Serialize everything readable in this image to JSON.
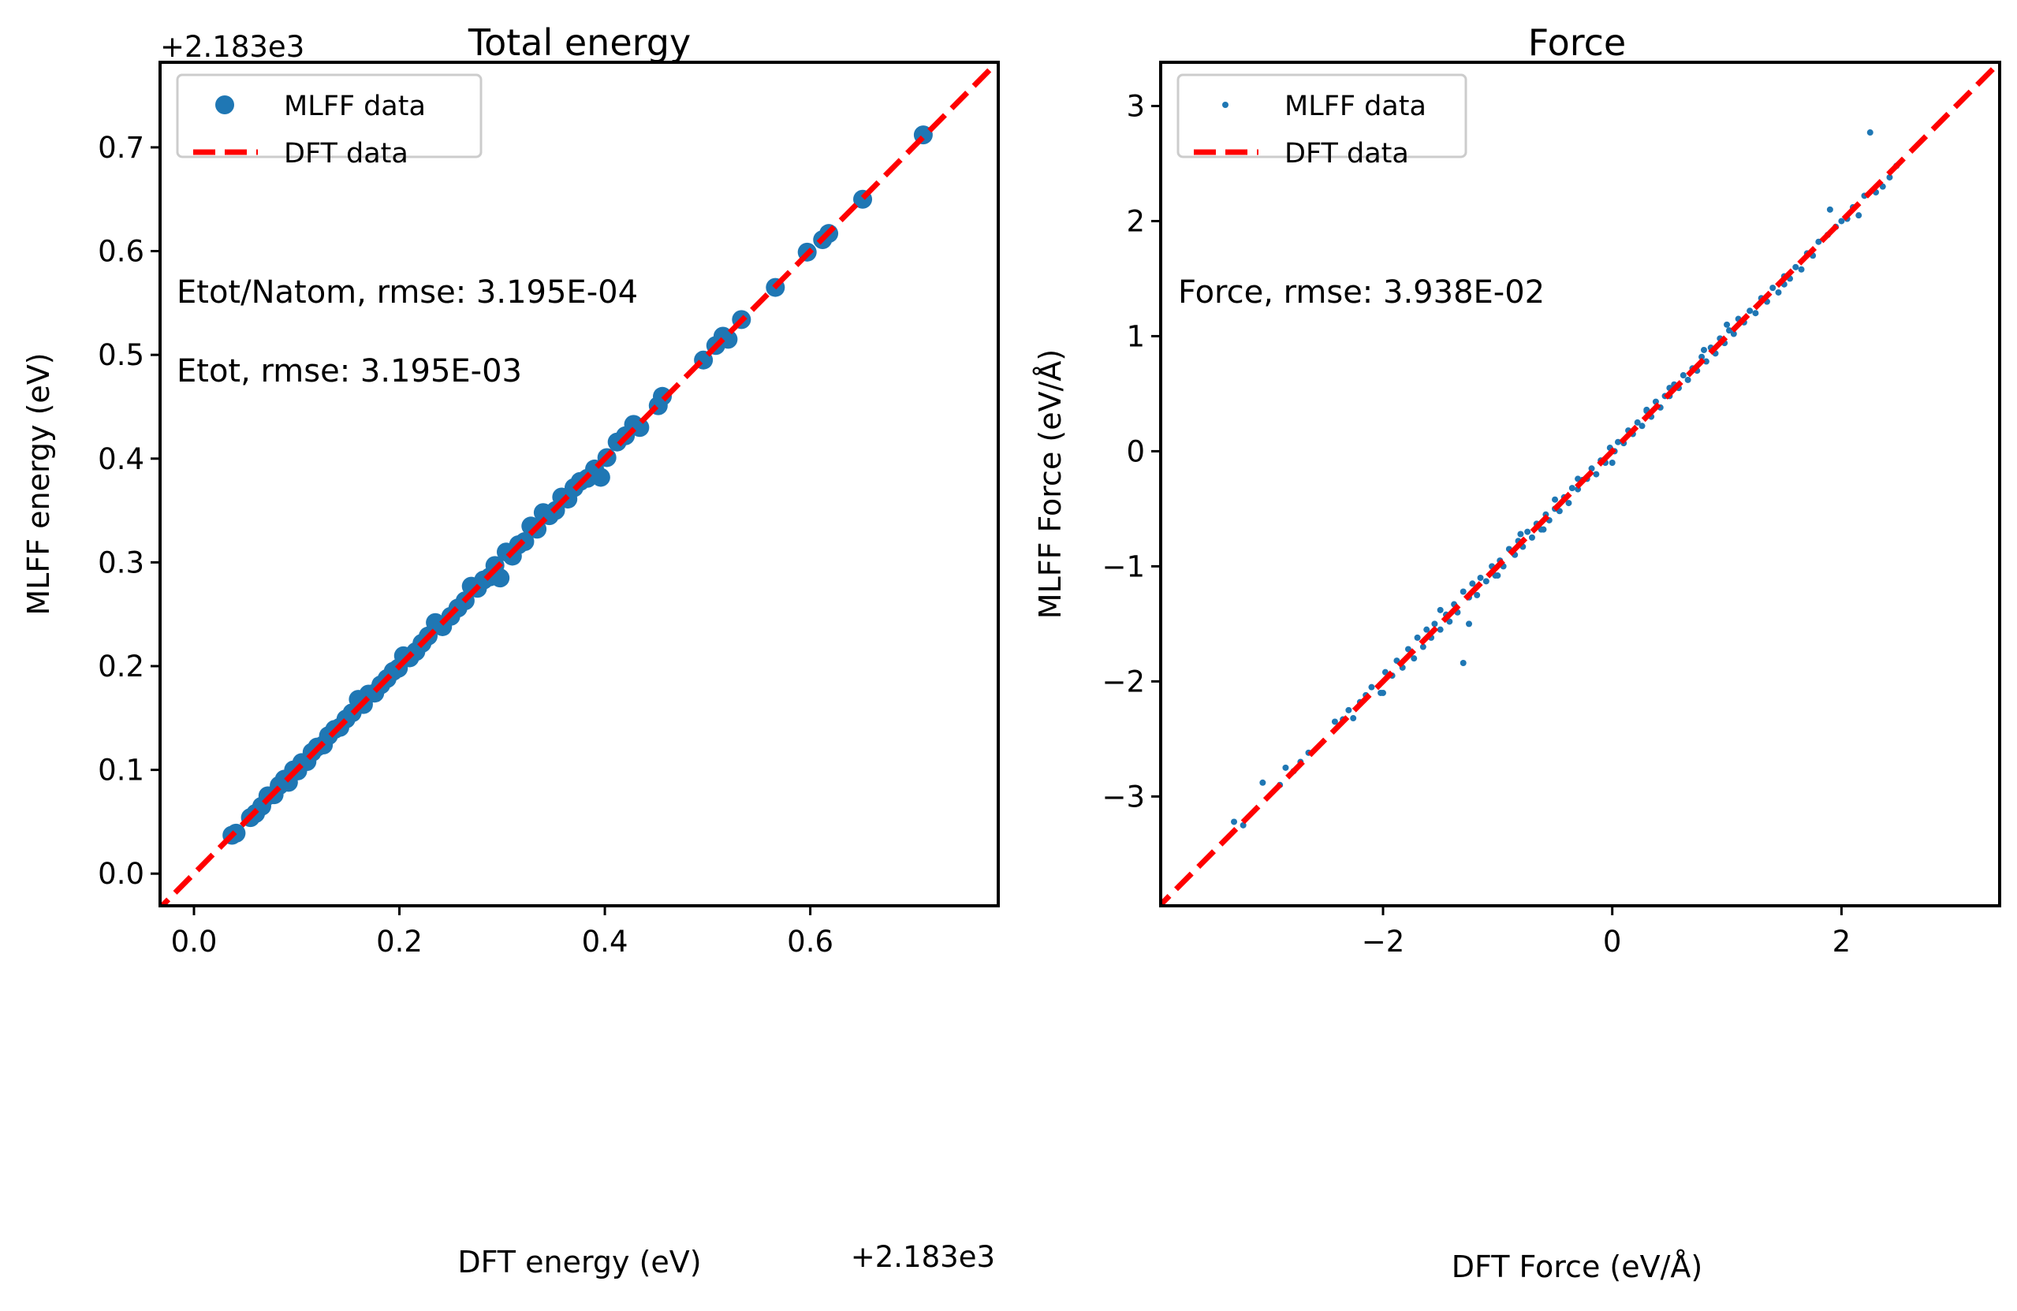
{
  "chart_data": [
    {
      "type": "scatter",
      "title": "Total energy",
      "xlabel": "DFT energy (eV)",
      "ylabel": "MLFF energy (eV)",
      "x_offset_label": "+2.183e3",
      "y_offset_label": "+2.183e3",
      "xlim": [
        -0.033,
        0.783
      ],
      "ylim": [
        -0.031,
        0.782
      ],
      "xticks": [
        "0.0",
        "0.2",
        "0.4",
        "0.6"
      ],
      "xtick_values": [
        0.0,
        0.2,
        0.4,
        0.6
      ],
      "yticks": [
        "0.0",
        "0.1",
        "0.2",
        "0.3",
        "0.4",
        "0.5",
        "0.6",
        "0.7"
      ],
      "ytick_values": [
        0.0,
        0.1,
        0.2,
        0.3,
        0.4,
        0.5,
        0.6,
        0.7
      ],
      "grid": false,
      "legend_position": "top-left",
      "annotations": [
        "Etot/Natom, rmse: 3.195E-04",
        "Etot, rmse: 3.195E-03"
      ],
      "series": [
        {
          "name": "MLFF data",
          "kind": "scatter",
          "color": "#1f77b4",
          "x": [
            0.037,
            0.041,
            0.055,
            0.06,
            0.066,
            0.072,
            0.078,
            0.083,
            0.088,
            0.092,
            0.097,
            0.101,
            0.105,
            0.11,
            0.115,
            0.12,
            0.126,
            0.131,
            0.137,
            0.142,
            0.148,
            0.154,
            0.16,
            0.165,
            0.17,
            0.176,
            0.182,
            0.188,
            0.194,
            0.199,
            0.204,
            0.21,
            0.216,
            0.222,
            0.228,
            0.235,
            0.242,
            0.25,
            0.257,
            0.264,
            0.27,
            0.276,
            0.282,
            0.288,
            0.293,
            0.298,
            0.304,
            0.31,
            0.316,
            0.322,
            0.328,
            0.334,
            0.34,
            0.346,
            0.352,
            0.358,
            0.364,
            0.37,
            0.376,
            0.383,
            0.39,
            0.396,
            0.402,
            0.412,
            0.42,
            0.428,
            0.434,
            0.452,
            0.456,
            0.496,
            0.508,
            0.515,
            0.52,
            0.533,
            0.566,
            0.597,
            0.612,
            0.618,
            0.651,
            0.71
          ],
          "y": [
            0.037,
            0.039,
            0.054,
            0.058,
            0.065,
            0.075,
            0.076,
            0.085,
            0.091,
            0.088,
            0.1,
            0.099,
            0.107,
            0.108,
            0.117,
            0.122,
            0.124,
            0.133,
            0.139,
            0.141,
            0.149,
            0.155,
            0.168,
            0.163,
            0.173,
            0.174,
            0.182,
            0.188,
            0.195,
            0.198,
            0.21,
            0.208,
            0.214,
            0.222,
            0.229,
            0.242,
            0.238,
            0.248,
            0.256,
            0.263,
            0.277,
            0.275,
            0.283,
            0.286,
            0.297,
            0.285,
            0.31,
            0.306,
            0.317,
            0.32,
            0.335,
            0.332,
            0.348,
            0.345,
            0.35,
            0.363,
            0.361,
            0.372,
            0.378,
            0.381,
            0.39,
            0.382,
            0.401,
            0.416,
            0.422,
            0.433,
            0.43,
            0.451,
            0.46,
            0.495,
            0.509,
            0.518,
            0.515,
            0.534,
            0.565,
            0.599,
            0.611,
            0.617,
            0.65,
            0.712
          ]
        },
        {
          "name": "DFT data",
          "kind": "line",
          "style": "dashed",
          "color": "#ff0000",
          "x": [
            -0.04,
            0.79
          ],
          "y": [
            -0.04,
            0.79
          ]
        }
      ]
    },
    {
      "type": "scatter",
      "title": "Force",
      "xlabel": "DFT Force (eV/Å)",
      "ylabel": "MLFF Force (eV/Å)",
      "xlim": [
        -3.94,
        3.38
      ],
      "ylim": [
        -3.95,
        3.38
      ],
      "xticks": [
        "−2",
        "0",
        "2"
      ],
      "xtick_values": [
        -2,
        0,
        2
      ],
      "yticks": [
        "−3",
        "−2",
        "−1",
        "0",
        "1",
        "2",
        "3"
      ],
      "ytick_values": [
        -3,
        -2,
        -1,
        0,
        1,
        2,
        3
      ],
      "grid": false,
      "legend_position": "top-left",
      "annotations": [
        "Force, rmse: 3.938E-02"
      ],
      "series": [
        {
          "name": "MLFF data",
          "kind": "scatter",
          "color": "#1f77b4",
          "x": [
            -3.3,
            -3.22,
            -3.05,
            -2.9,
            -2.85,
            -2.78,
            -2.72,
            -2.65,
            -2.42,
            -2.35,
            -2.3,
            -2.26,
            -2.2,
            -2.15,
            -2.1,
            -2.02,
            -1.98,
            -1.92,
            -1.88,
            -1.83,
            -1.78,
            -1.73,
            -1.7,
            -1.65,
            -1.62,
            -1.58,
            -1.55,
            -1.5,
            -1.45,
            -1.42,
            -1.38,
            -1.35,
            -1.3,
            -1.25,
            -1.22,
            -1.18,
            -1.15,
            -1.1,
            -1.05,
            -1.02,
            -0.98,
            -0.95,
            -0.9,
            -0.85,
            -0.82,
            -0.78,
            -0.74,
            -0.7,
            -0.66,
            -0.62,
            -0.58,
            -0.55,
            -0.5,
            -0.46,
            -0.42,
            -0.38,
            -0.35,
            -0.3,
            -0.26,
            -0.22,
            -0.18,
            -0.14,
            -0.1,
            -0.06,
            -0.02,
            0.02,
            0.05,
            0.1,
            0.14,
            0.18,
            0.22,
            0.26,
            0.3,
            0.34,
            0.38,
            0.42,
            0.46,
            0.5,
            0.54,
            0.58,
            0.62,
            0.66,
            0.7,
            0.74,
            0.78,
            0.82,
            0.86,
            0.9,
            0.94,
            0.98,
            1.02,
            1.06,
            1.1,
            1.15,
            1.2,
            1.25,
            1.3,
            1.35,
            1.4,
            1.45,
            1.5,
            1.55,
            1.6,
            1.65,
            1.7,
            1.75,
            1.8,
            1.88,
            1.95,
            2.0,
            2.05,
            2.1,
            2.15,
            2.2,
            2.25,
            2.3,
            2.36,
            2.42,
            2.48,
            -1.3,
            -1.25,
            -0.6,
            0.0,
            1.9,
            -2.0,
            -1.5,
            -1.0,
            -0.5,
            0.5,
            1.0,
            1.5,
            0.8,
            -0.8,
            0.3,
            -0.3
          ],
          "y": [
            -3.22,
            -3.25,
            -2.88,
            -2.9,
            -2.75,
            -2.78,
            -2.7,
            -2.62,
            -2.35,
            -2.33,
            -2.25,
            -2.32,
            -2.18,
            -2.12,
            -2.05,
            -2.1,
            -1.92,
            -1.95,
            -1.82,
            -1.88,
            -1.72,
            -1.8,
            -1.62,
            -1.7,
            -1.55,
            -1.62,
            -1.5,
            -1.55,
            -1.42,
            -1.48,
            -1.33,
            -1.4,
            -1.22,
            -1.27,
            -1.15,
            -1.25,
            -1.1,
            -1.13,
            -1.0,
            -1.08,
            -0.95,
            -1.0,
            -0.85,
            -0.9,
            -0.78,
            -0.83,
            -0.7,
            -0.75,
            -0.63,
            -0.68,
            -0.55,
            -0.6,
            -0.5,
            -0.52,
            -0.4,
            -0.45,
            -0.32,
            -0.33,
            -0.25,
            -0.24,
            -0.15,
            -0.2,
            -0.08,
            -0.1,
            0.03,
            0.0,
            0.08,
            0.07,
            0.18,
            0.15,
            0.25,
            0.22,
            0.35,
            0.3,
            0.43,
            0.38,
            0.48,
            0.48,
            0.58,
            0.55,
            0.66,
            0.62,
            0.72,
            0.7,
            0.82,
            0.78,
            0.9,
            0.85,
            0.98,
            0.94,
            1.05,
            1.02,
            1.15,
            1.12,
            1.22,
            1.2,
            1.33,
            1.3,
            1.42,
            1.38,
            1.52,
            1.5,
            1.6,
            1.58,
            1.72,
            1.7,
            1.82,
            1.88,
            1.95,
            2.0,
            2.02,
            2.12,
            2.05,
            2.22,
            2.77,
            2.25,
            2.3,
            2.38,
            2.48,
            -1.84,
            -1.5,
            -0.68,
            -0.1,
            2.1,
            -2.1,
            -1.38,
            -1.08,
            -0.42,
            0.55,
            1.1,
            1.45,
            0.88,
            -0.72,
            0.36,
            -0.24
          ]
        },
        {
          "name": "DFT data",
          "kind": "line",
          "style": "dashed",
          "color": "#ff0000",
          "x": [
            -4.0,
            3.4
          ],
          "y": [
            -4.0,
            3.4
          ]
        }
      ]
    }
  ]
}
